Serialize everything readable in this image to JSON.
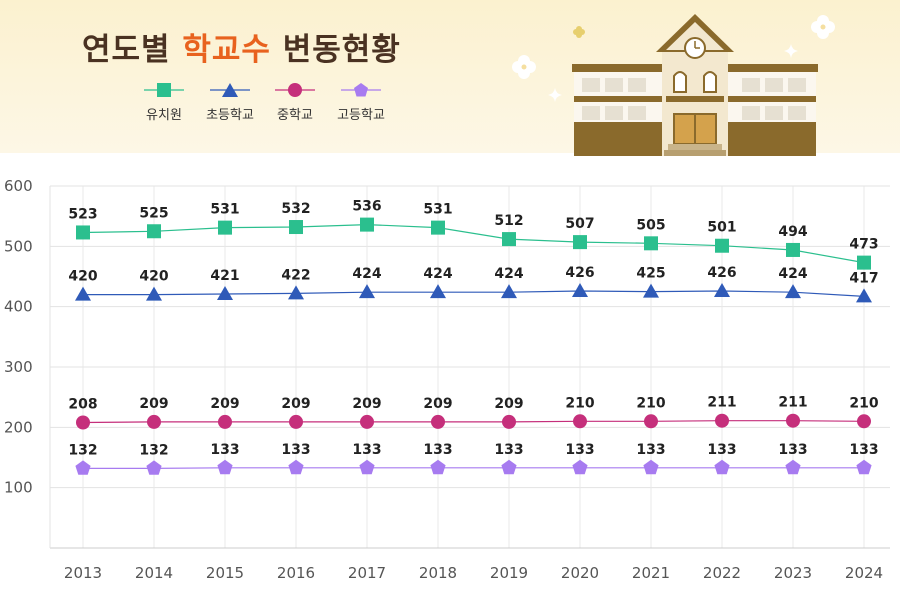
{
  "header": {
    "title_prefix": "연도별",
    "title_accent": "학교수",
    "title_suffix": "변동현황"
  },
  "colors": {
    "kindergarten": "#2bbf8e",
    "elementary": "#2f5ab8",
    "middle": "#c52f7b",
    "high": "#a77bf0",
    "title_accent": "#e8621e"
  },
  "legend": [
    {
      "label": "유치원",
      "marker": "square"
    },
    {
      "label": "초등학교",
      "marker": "triangle"
    },
    {
      "label": "중학교",
      "marker": "circle"
    },
    {
      "label": "고등학교",
      "marker": "pentagon"
    }
  ],
  "illustration": {
    "icon": "school-building-icon"
  },
  "chart_data": {
    "type": "line",
    "categories": [
      "2013",
      "2014",
      "2015",
      "2016",
      "2017",
      "2018",
      "2019",
      "2020",
      "2021",
      "2022",
      "2023",
      "2024"
    ],
    "series": [
      {
        "name": "유치원",
        "marker": "square",
        "values": [
          523,
          525,
          531,
          532,
          536,
          531,
          512,
          507,
          505,
          501,
          494,
          473
        ]
      },
      {
        "name": "초등학교",
        "marker": "triangle",
        "values": [
          420,
          420,
          421,
          422,
          424,
          424,
          424,
          426,
          425,
          426,
          424,
          417
        ]
      },
      {
        "name": "중학교",
        "marker": "circle",
        "values": [
          208,
          209,
          209,
          209,
          209,
          209,
          209,
          210,
          210,
          211,
          211,
          210
        ]
      },
      {
        "name": "고등학교",
        "marker": "pentagon",
        "values": [
          132,
          132,
          133,
          133,
          133,
          133,
          133,
          133,
          133,
          133,
          133,
          133
        ]
      }
    ],
    "yticks": [
      "600",
      "500",
      "400",
      "300",
      "200",
      "100"
    ],
    "ylim": [
      0,
      600
    ],
    "grid": true,
    "legend_position": "top-left",
    "xlabel": "",
    "ylabel": ""
  }
}
